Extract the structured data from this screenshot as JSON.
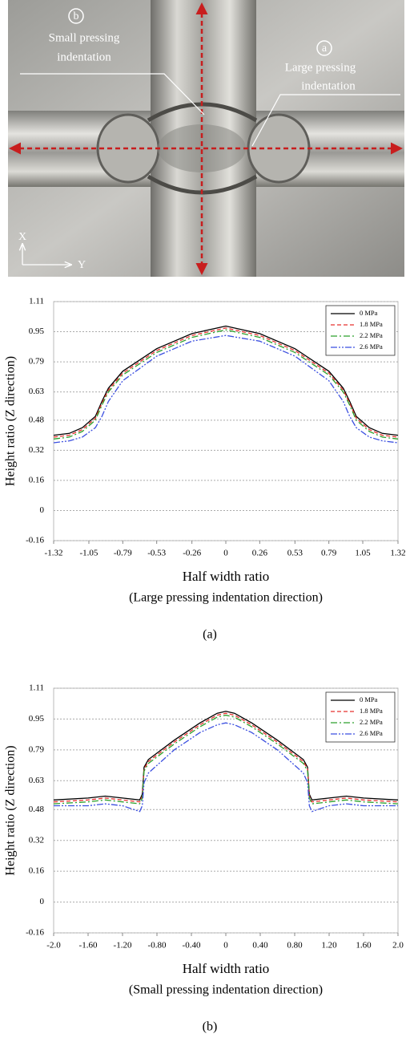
{
  "photo": {
    "annotations": [
      {
        "marker": "b",
        "text": [
          "Small pressing",
          "indentation"
        ]
      },
      {
        "marker": "a",
        "text": [
          "Large pressing",
          "indentation"
        ]
      }
    ],
    "axes": [
      "X",
      "Y"
    ]
  },
  "chart_data": [
    {
      "type": "line",
      "xlabel": "Half width ratio",
      "xlabel_note": "(Large pressing indentation direction)",
      "caption": "(a)",
      "ylabel": "Height ratio (Z direction)",
      "x": [
        -1.32,
        -1.2,
        -1.1,
        -1.0,
        -0.95,
        -0.9,
        -0.79,
        -0.53,
        -0.26,
        0,
        0.26,
        0.53,
        0.79,
        0.9,
        0.95,
        1.0,
        1.1,
        1.2,
        1.32
      ],
      "series": [
        {
          "name": "0 MPa",
          "color": "#000000",
          "linestyle": "solid",
          "values": [
            0.4,
            0.41,
            0.44,
            0.5,
            0.58,
            0.65,
            0.74,
            0.86,
            0.94,
            0.98,
            0.94,
            0.86,
            0.74,
            0.65,
            0.58,
            0.5,
            0.44,
            0.41,
            0.4
          ]
        },
        {
          "name": "1.8 MPa",
          "color": "#e8312f",
          "linestyle": "dashed",
          "values": [
            0.39,
            0.4,
            0.43,
            0.49,
            0.57,
            0.64,
            0.73,
            0.85,
            0.93,
            0.97,
            0.93,
            0.85,
            0.73,
            0.64,
            0.57,
            0.49,
            0.43,
            0.4,
            0.39
          ]
        },
        {
          "name": "2.2 MPa",
          "color": "#2ca02c",
          "linestyle": "dashdot",
          "values": [
            0.38,
            0.39,
            0.42,
            0.48,
            0.56,
            0.63,
            0.72,
            0.84,
            0.92,
            0.96,
            0.92,
            0.84,
            0.72,
            0.63,
            0.56,
            0.48,
            0.42,
            0.39,
            0.38
          ]
        },
        {
          "name": "2.6 MPa",
          "color": "#3b4fe0",
          "linestyle": "dashdotdot",
          "values": [
            0.36,
            0.37,
            0.39,
            0.44,
            0.5,
            0.58,
            0.69,
            0.82,
            0.9,
            0.93,
            0.9,
            0.82,
            0.69,
            0.58,
            0.5,
            0.44,
            0.39,
            0.37,
            0.36
          ]
        }
      ],
      "xlim": [
        -1.32,
        1.32
      ],
      "xticks": [
        -1.32,
        -1.05,
        -0.79,
        -0.53,
        -0.26,
        0,
        0.26,
        0.53,
        0.79,
        1.05,
        1.32
      ],
      "ylim": [
        -0.16,
        1.11
      ],
      "yticks": [
        -0.16,
        0,
        0.16,
        0.32,
        0.48,
        0.63,
        0.79,
        0.95,
        1.11
      ],
      "grid": true,
      "legend": "upper right"
    },
    {
      "type": "line",
      "xlabel": "Half width ratio",
      "xlabel_note": "(Small pressing indentation direction)",
      "caption": "(b)",
      "ylabel": "Height ratio (Z direction)",
      "x": [
        -2.0,
        -1.6,
        -1.4,
        -1.2,
        -1.0,
        -0.97,
        -0.95,
        -0.9,
        -0.6,
        -0.3,
        -0.1,
        0,
        0.1,
        0.3,
        0.6,
        0.9,
        0.95,
        0.97,
        1.0,
        1.2,
        1.4,
        1.6,
        2.0
      ],
      "series": [
        {
          "name": "0 MPa",
          "color": "#000000",
          "linestyle": "solid",
          "values": [
            0.53,
            0.54,
            0.55,
            0.54,
            0.53,
            0.56,
            0.7,
            0.74,
            0.84,
            0.93,
            0.98,
            0.99,
            0.98,
            0.93,
            0.84,
            0.74,
            0.7,
            0.56,
            0.53,
            0.54,
            0.55,
            0.54,
            0.53
          ]
        },
        {
          "name": "1.8 MPa",
          "color": "#e8312f",
          "linestyle": "dashed",
          "values": [
            0.52,
            0.53,
            0.54,
            0.53,
            0.52,
            0.55,
            0.69,
            0.73,
            0.83,
            0.92,
            0.97,
            0.98,
            0.97,
            0.92,
            0.83,
            0.73,
            0.69,
            0.55,
            0.52,
            0.53,
            0.54,
            0.53,
            0.52
          ]
        },
        {
          "name": "2.2 MPa",
          "color": "#2ca02c",
          "linestyle": "dashdot",
          "values": [
            0.51,
            0.52,
            0.53,
            0.52,
            0.51,
            0.54,
            0.68,
            0.72,
            0.82,
            0.91,
            0.96,
            0.97,
            0.96,
            0.91,
            0.82,
            0.72,
            0.68,
            0.54,
            0.51,
            0.52,
            0.53,
            0.52,
            0.51
          ]
        },
        {
          "name": "2.6 MPa",
          "color": "#3b4fe0",
          "linestyle": "dashdotdot",
          "values": [
            0.5,
            0.5,
            0.51,
            0.5,
            0.47,
            0.5,
            0.62,
            0.67,
            0.79,
            0.88,
            0.92,
            0.93,
            0.92,
            0.88,
            0.79,
            0.67,
            0.62,
            0.5,
            0.47,
            0.5,
            0.51,
            0.5,
            0.5
          ]
        }
      ],
      "xlim": [
        -2.0,
        2.0
      ],
      "xticks": [
        {
          "value": -2.0,
          "label": "-2.0"
        },
        {
          "value": -1.6,
          "label": "-1.60"
        },
        {
          "value": -1.2,
          "label": "-1.20"
        },
        {
          "value": -0.8,
          "label": "-0.80"
        },
        {
          "value": -0.4,
          "label": "-0.40"
        },
        0,
        {
          "value": 0.4,
          "label": "0.40"
        },
        {
          "value": 0.8,
          "label": "0.80"
        },
        {
          "value": 1.2,
          "label": "1.20"
        },
        {
          "value": 1.6,
          "label": "1.60"
        },
        {
          "value": 2.0,
          "label": "2.0"
        }
      ],
      "ylim": [
        -0.16,
        1.11
      ],
      "yticks": [
        -0.16,
        0,
        0.16,
        0.32,
        0.48,
        0.63,
        0.79,
        0.95,
        1.11
      ],
      "grid": true,
      "legend": "upper right"
    }
  ]
}
